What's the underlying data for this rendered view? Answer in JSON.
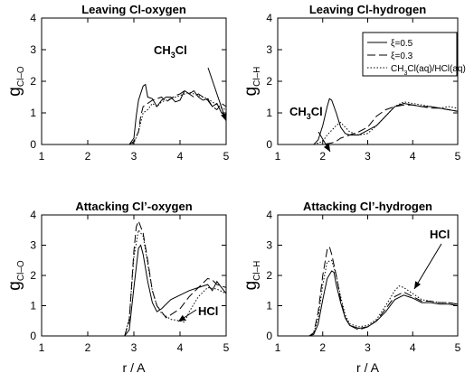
{
  "chart_data": [
    {
      "type": "line",
      "title": "Leaving Cl-oxygen",
      "ylabel_main": "g",
      "ylabel_sub": "Cl–O",
      "xlabel": "",
      "xlim": [
        1,
        5
      ],
      "ylim": [
        0,
        4
      ],
      "xticks": [
        "1",
        "2",
        "3",
        "4",
        "5"
      ],
      "yticks": [
        "0",
        "1",
        "2",
        "3",
        "4"
      ],
      "annotation": {
        "text": "CH3Cl",
        "base": "CH",
        "sub": "3",
        "rest": "Cl"
      },
      "series": [
        {
          "name": "ξ=0.5",
          "style": "solid",
          "x": [
            2.9,
            3.0,
            3.05,
            3.1,
            3.2,
            3.25,
            3.3,
            3.4,
            3.5,
            3.6,
            3.7,
            3.8,
            3.9,
            4.0,
            4.1,
            4.2,
            4.3,
            4.4,
            4.5,
            4.6,
            4.7,
            4.8,
            4.9,
            5.0
          ],
          "y": [
            0,
            0.2,
            0.9,
            1.4,
            1.85,
            1.9,
            1.5,
            1.45,
            1.2,
            1.4,
            1.5,
            1.5,
            1.35,
            1.4,
            1.7,
            1.6,
            1.7,
            1.5,
            1.4,
            1.45,
            1.2,
            1.3,
            1.0,
            0.9
          ]
        },
        {
          "name": "ξ=0.3",
          "style": "dashed",
          "x": [
            2.9,
            3.0,
            3.1,
            3.15,
            3.2,
            3.3,
            3.4,
            3.5,
            3.6,
            3.7,
            3.8,
            3.9,
            4.0,
            4.1,
            4.2,
            4.3,
            4.4,
            4.5,
            4.6,
            4.7,
            4.8,
            4.9,
            5.0
          ],
          "y": [
            0,
            0.1,
            0.4,
            0.9,
            1.2,
            1.3,
            1.4,
            1.45,
            1.5,
            1.35,
            1.45,
            1.55,
            1.6,
            1.7,
            1.6,
            1.5,
            1.6,
            1.5,
            1.4,
            1.2,
            1.1,
            1.3,
            1.2
          ]
        },
        {
          "name": "CH3Cl(aq)/HCl(aq)",
          "style": "dotted",
          "x": [
            2.9,
            3.0,
            3.1,
            3.2,
            3.3,
            3.4,
            3.5,
            3.6,
            3.7,
            3.8,
            3.9,
            4.0,
            4.1,
            4.2,
            4.3,
            4.4,
            4.5,
            4.6,
            4.7,
            4.8,
            4.9,
            5.0
          ],
          "y": [
            0,
            0.05,
            0.4,
            1.0,
            1.1,
            1.3,
            1.2,
            1.35,
            1.4,
            1.45,
            1.5,
            1.55,
            1.6,
            1.65,
            1.6,
            1.55,
            1.5,
            1.45,
            1.35,
            1.25,
            1.15,
            1.1
          ]
        }
      ]
    },
    {
      "type": "line",
      "title": "Leaving Cl-hydrogen",
      "ylabel_main": "g",
      "ylabel_sub": "Cl–H",
      "xlabel": "",
      "xlim": [
        1,
        5
      ],
      "ylim": [
        0,
        4
      ],
      "xticks": [
        "1",
        "2",
        "3",
        "4",
        "5"
      ],
      "yticks": [
        "0",
        "1",
        "2",
        "3",
        "4"
      ],
      "annotation": {
        "text": "CH3Cl",
        "base": "CH",
        "sub": "3",
        "rest": "Cl"
      },
      "legend": {
        "position": "top-right",
        "items": [
          {
            "base": "ξ=0.5",
            "sub": "",
            "rest": "",
            "style": "solid"
          },
          {
            "base": "ξ=0.3",
            "sub": "",
            "rest": "",
            "style": "dashed"
          },
          {
            "base": "CH",
            "sub": "3",
            "rest": "Cl(aq)/HCl(aq)",
            "style": "dotted"
          }
        ]
      },
      "series": [
        {
          "name": "ξ=0.5",
          "style": "solid",
          "x": [
            1.8,
            1.9,
            2.0,
            2.1,
            2.15,
            2.2,
            2.3,
            2.4,
            2.5,
            2.6,
            2.8,
            3.0,
            3.2,
            3.4,
            3.6,
            3.8,
            4.0,
            4.2,
            4.4,
            4.6,
            4.8,
            5.0
          ],
          "y": [
            0,
            0.15,
            0.6,
            1.2,
            1.45,
            1.4,
            1.0,
            0.55,
            0.35,
            0.3,
            0.3,
            0.45,
            0.6,
            0.9,
            1.2,
            1.3,
            1.25,
            1.2,
            1.2,
            1.15,
            1.1,
            1.05
          ]
        },
        {
          "name": "ξ=0.3",
          "style": "dashed",
          "x": [
            1.8,
            2.0,
            2.2,
            2.3,
            2.4,
            2.5,
            2.6,
            2.8,
            3.0,
            3.2,
            3.4,
            3.6,
            3.8,
            4.0,
            4.2,
            4.4,
            4.6,
            4.8,
            5.0
          ],
          "y": [
            0,
            0,
            0.05,
            0.1,
            0.2,
            0.25,
            0.3,
            0.4,
            0.55,
            0.9,
            1.1,
            1.2,
            1.25,
            1.25,
            1.2,
            1.15,
            1.15,
            1.1,
            1.05
          ]
        },
        {
          "name": "CH3Cl(aq)/HCl(aq)",
          "style": "dotted",
          "x": [
            1.8,
            2.0,
            2.1,
            2.2,
            2.3,
            2.4,
            2.5,
            2.6,
            2.8,
            3.0,
            3.2,
            3.4,
            3.6,
            3.8,
            4.0,
            4.2,
            4.4,
            4.6,
            4.8,
            5.0
          ],
          "y": [
            0,
            0.1,
            0.3,
            0.45,
            0.6,
            0.7,
            0.55,
            0.4,
            0.3,
            0.35,
            0.6,
            0.9,
            1.2,
            1.35,
            1.3,
            1.25,
            1.2,
            1.15,
            1.2,
            1.15
          ]
        }
      ]
    },
    {
      "type": "line",
      "title": "Attacking Cl’-oxygen",
      "ylabel_main": "g",
      "ylabel_sub": "Cl–O",
      "xlabel": "r / A",
      "xlim": [
        1,
        5
      ],
      "ylim": [
        0,
        4
      ],
      "xticks": [
        "1",
        "2",
        "3",
        "4",
        "5"
      ],
      "yticks": [
        "0",
        "1",
        "2",
        "3",
        "4"
      ],
      "annotation": {
        "text": "HCl",
        "base": "HCl",
        "sub": "",
        "rest": ""
      },
      "series": [
        {
          "name": "ξ=0.5",
          "style": "solid",
          "x": [
            2.8,
            2.9,
            3.0,
            3.1,
            3.15,
            3.2,
            3.3,
            3.4,
            3.5,
            3.6,
            3.8,
            4.0,
            4.2,
            4.4,
            4.6,
            4.7,
            4.8,
            4.9,
            5.0
          ],
          "y": [
            0,
            0.2,
            1.6,
            2.9,
            3.0,
            2.7,
            1.8,
            1.1,
            0.8,
            0.9,
            1.2,
            1.35,
            1.5,
            1.6,
            1.7,
            1.5,
            1.8,
            1.6,
            1.4
          ]
        },
        {
          "name": "ξ=0.3",
          "style": "dashed",
          "x": [
            2.8,
            2.9,
            3.0,
            3.05,
            3.1,
            3.2,
            3.3,
            3.4,
            3.5,
            3.6,
            3.7,
            3.8,
            4.0,
            4.2,
            4.4,
            4.6,
            4.7,
            4.8,
            5.0
          ],
          "y": [
            0,
            0.5,
            2.8,
            3.6,
            3.8,
            3.4,
            2.5,
            1.5,
            1.0,
            0.8,
            0.6,
            0.7,
            0.9,
            1.3,
            1.6,
            1.9,
            1.85,
            1.7,
            1.6
          ]
        },
        {
          "name": "CH3Cl(aq)/HCl(aq)",
          "style": "dotted",
          "x": [
            2.8,
            2.9,
            3.0,
            3.1,
            3.2,
            3.3,
            3.4,
            3.5,
            3.6,
            3.8,
            4.0,
            4.1,
            4.2,
            4.4,
            4.6,
            4.8,
            5.0
          ],
          "y": [
            0,
            0.6,
            2.6,
            3.5,
            3.3,
            2.4,
            1.5,
            1.0,
            0.75,
            0.55,
            0.5,
            0.45,
            0.8,
            1.3,
            1.6,
            1.55,
            1.4
          ]
        }
      ]
    },
    {
      "type": "line",
      "title": "Attacking Cl’-hydrogen",
      "ylabel_main": "g",
      "ylabel_sub": "Cl–H",
      "xlabel": "r / A",
      "xlim": [
        1,
        5
      ],
      "ylim": [
        0,
        4
      ],
      "xticks": [
        "1",
        "2",
        "3",
        "4",
        "5"
      ],
      "yticks": [
        "0",
        "1",
        "2",
        "3",
        "4"
      ],
      "annotation": {
        "text": "HCl",
        "base": "HCl",
        "sub": "",
        "rest": ""
      },
      "series": [
        {
          "name": "ξ=0.5",
          "style": "solid",
          "x": [
            1.7,
            1.8,
            1.9,
            2.0,
            2.1,
            2.2,
            2.25,
            2.3,
            2.4,
            2.5,
            2.6,
            2.8,
            3.0,
            3.2,
            3.4,
            3.6,
            3.8,
            4.0,
            4.2,
            4.4,
            4.6,
            4.8,
            5.0
          ],
          "y": [
            0,
            0.05,
            0.4,
            1.2,
            1.9,
            2.15,
            2.1,
            1.7,
            1.1,
            0.6,
            0.35,
            0.25,
            0.3,
            0.5,
            0.8,
            1.2,
            1.35,
            1.25,
            1.1,
            1.1,
            1.05,
            1.05,
            1.0
          ]
        },
        {
          "name": "ξ=0.3",
          "style": "dashed",
          "x": [
            1.7,
            1.8,
            1.9,
            2.0,
            2.1,
            2.15,
            2.2,
            2.3,
            2.4,
            2.5,
            2.6,
            2.8,
            3.0,
            3.2,
            3.4,
            3.6,
            3.8,
            4.0,
            4.2,
            4.4,
            4.6,
            4.8,
            5.0
          ],
          "y": [
            0,
            0.1,
            0.8,
            2.0,
            2.85,
            2.95,
            2.7,
            2.0,
            1.2,
            0.6,
            0.35,
            0.2,
            0.3,
            0.5,
            0.9,
            1.3,
            1.45,
            1.3,
            1.15,
            1.15,
            1.1,
            1.1,
            1.05
          ]
        },
        {
          "name": "CH3Cl(aq)/HCl(aq)",
          "style": "dotted",
          "x": [
            1.7,
            1.8,
            1.9,
            2.0,
            2.1,
            2.2,
            2.3,
            2.4,
            2.5,
            2.6,
            2.8,
            3.0,
            3.2,
            3.4,
            3.6,
            3.7,
            3.8,
            4.0,
            4.2,
            4.4,
            4.6,
            4.8,
            5.0
          ],
          "y": [
            0,
            0.1,
            0.6,
            1.7,
            2.45,
            2.5,
            2.0,
            1.3,
            0.7,
            0.4,
            0.3,
            0.35,
            0.55,
            1.0,
            1.5,
            1.65,
            1.6,
            1.4,
            1.2,
            1.15,
            1.1,
            1.1,
            1.05
          ]
        }
      ]
    }
  ]
}
